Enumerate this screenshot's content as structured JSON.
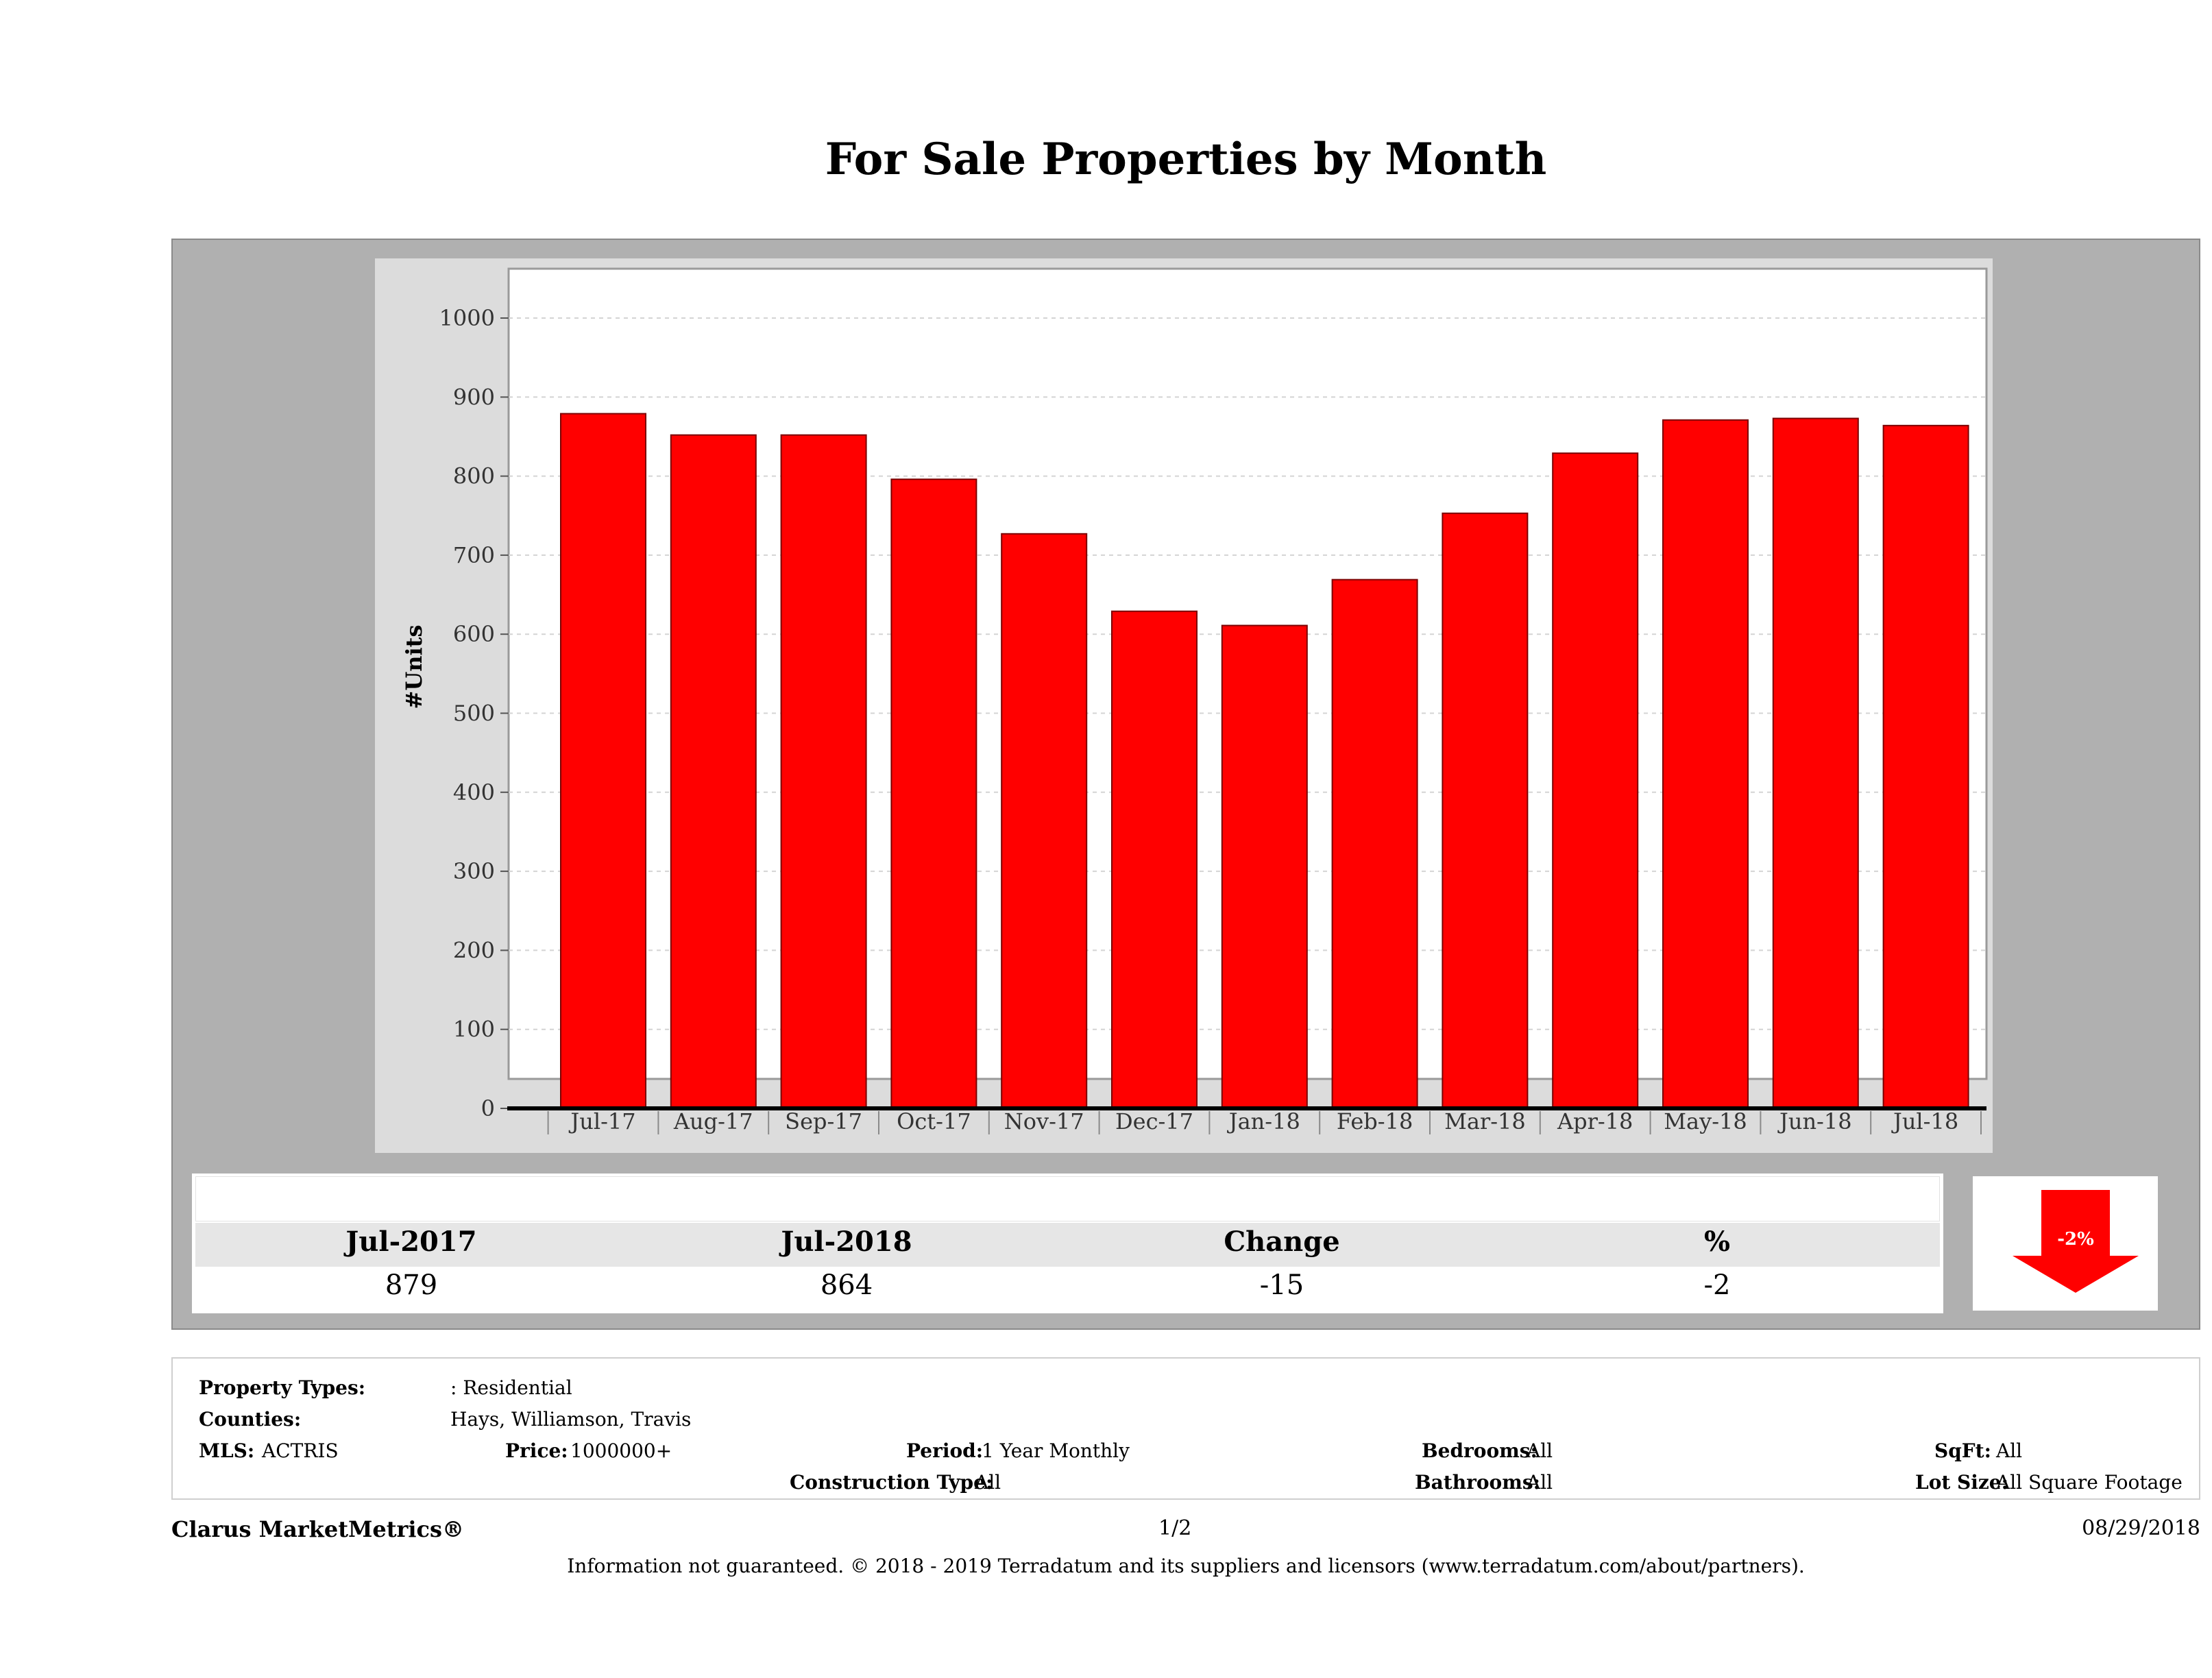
{
  "chart_data": {
    "type": "bar",
    "title": "For Sale Properties by Month",
    "xlabel": "",
    "ylabel": "#Units",
    "ylim": [
      0,
      1050
    ],
    "yticks": [
      0,
      100,
      200,
      300,
      400,
      500,
      600,
      700,
      800,
      900,
      1000
    ],
    "grid": true,
    "categories": [
      "Jul-17",
      "Aug-17",
      "Sep-17",
      "Oct-17",
      "Nov-17",
      "Dec-17",
      "Jan-18",
      "Feb-18",
      "Mar-18",
      "Apr-18",
      "May-18",
      "Jun-18",
      "Jul-18"
    ],
    "values": [
      879,
      852,
      852,
      796,
      727,
      629,
      611,
      669,
      753,
      829,
      871,
      873,
      864
    ],
    "bar_color": "#ff0000"
  },
  "summary": {
    "headers": [
      "Jul-2017",
      "Jul-2018",
      "Change",
      "%"
    ],
    "values": [
      "879",
      "864",
      "-15",
      "-2"
    ],
    "badge": "-2%",
    "badge_color": "#ff0000"
  },
  "properties": {
    "property_types_label": "Property Types:",
    "property_types_value": ": Residential",
    "counties_label": "Counties:",
    "counties_value": "Hays, Williamson, Travis",
    "mls_label": "MLS:",
    "mls_value": "ACTRIS",
    "price_label": "Price:",
    "price_value": "1000000+",
    "period_label": "Period:",
    "period_value": "1 Year Monthly",
    "construction_label": "Construction Type:",
    "construction_value": "All",
    "bedrooms_label": "Bedrooms:",
    "bedrooms_value": "All",
    "bathrooms_label": "Bathrooms:",
    "bathrooms_value": "All",
    "sqft_label": "SqFt:",
    "sqft_value": "All",
    "lotsize_label": "Lot Size:",
    "lotsize_value": "All Square Footage"
  },
  "footer": {
    "brand": "Clarus MarketMetrics®",
    "page": "1/2",
    "date": "08/29/2018",
    "disclaimer": "Information not guaranteed. © 2018 - 2019 Terradatum and its suppliers and licensors (www.terradatum.com/about/partners)."
  }
}
